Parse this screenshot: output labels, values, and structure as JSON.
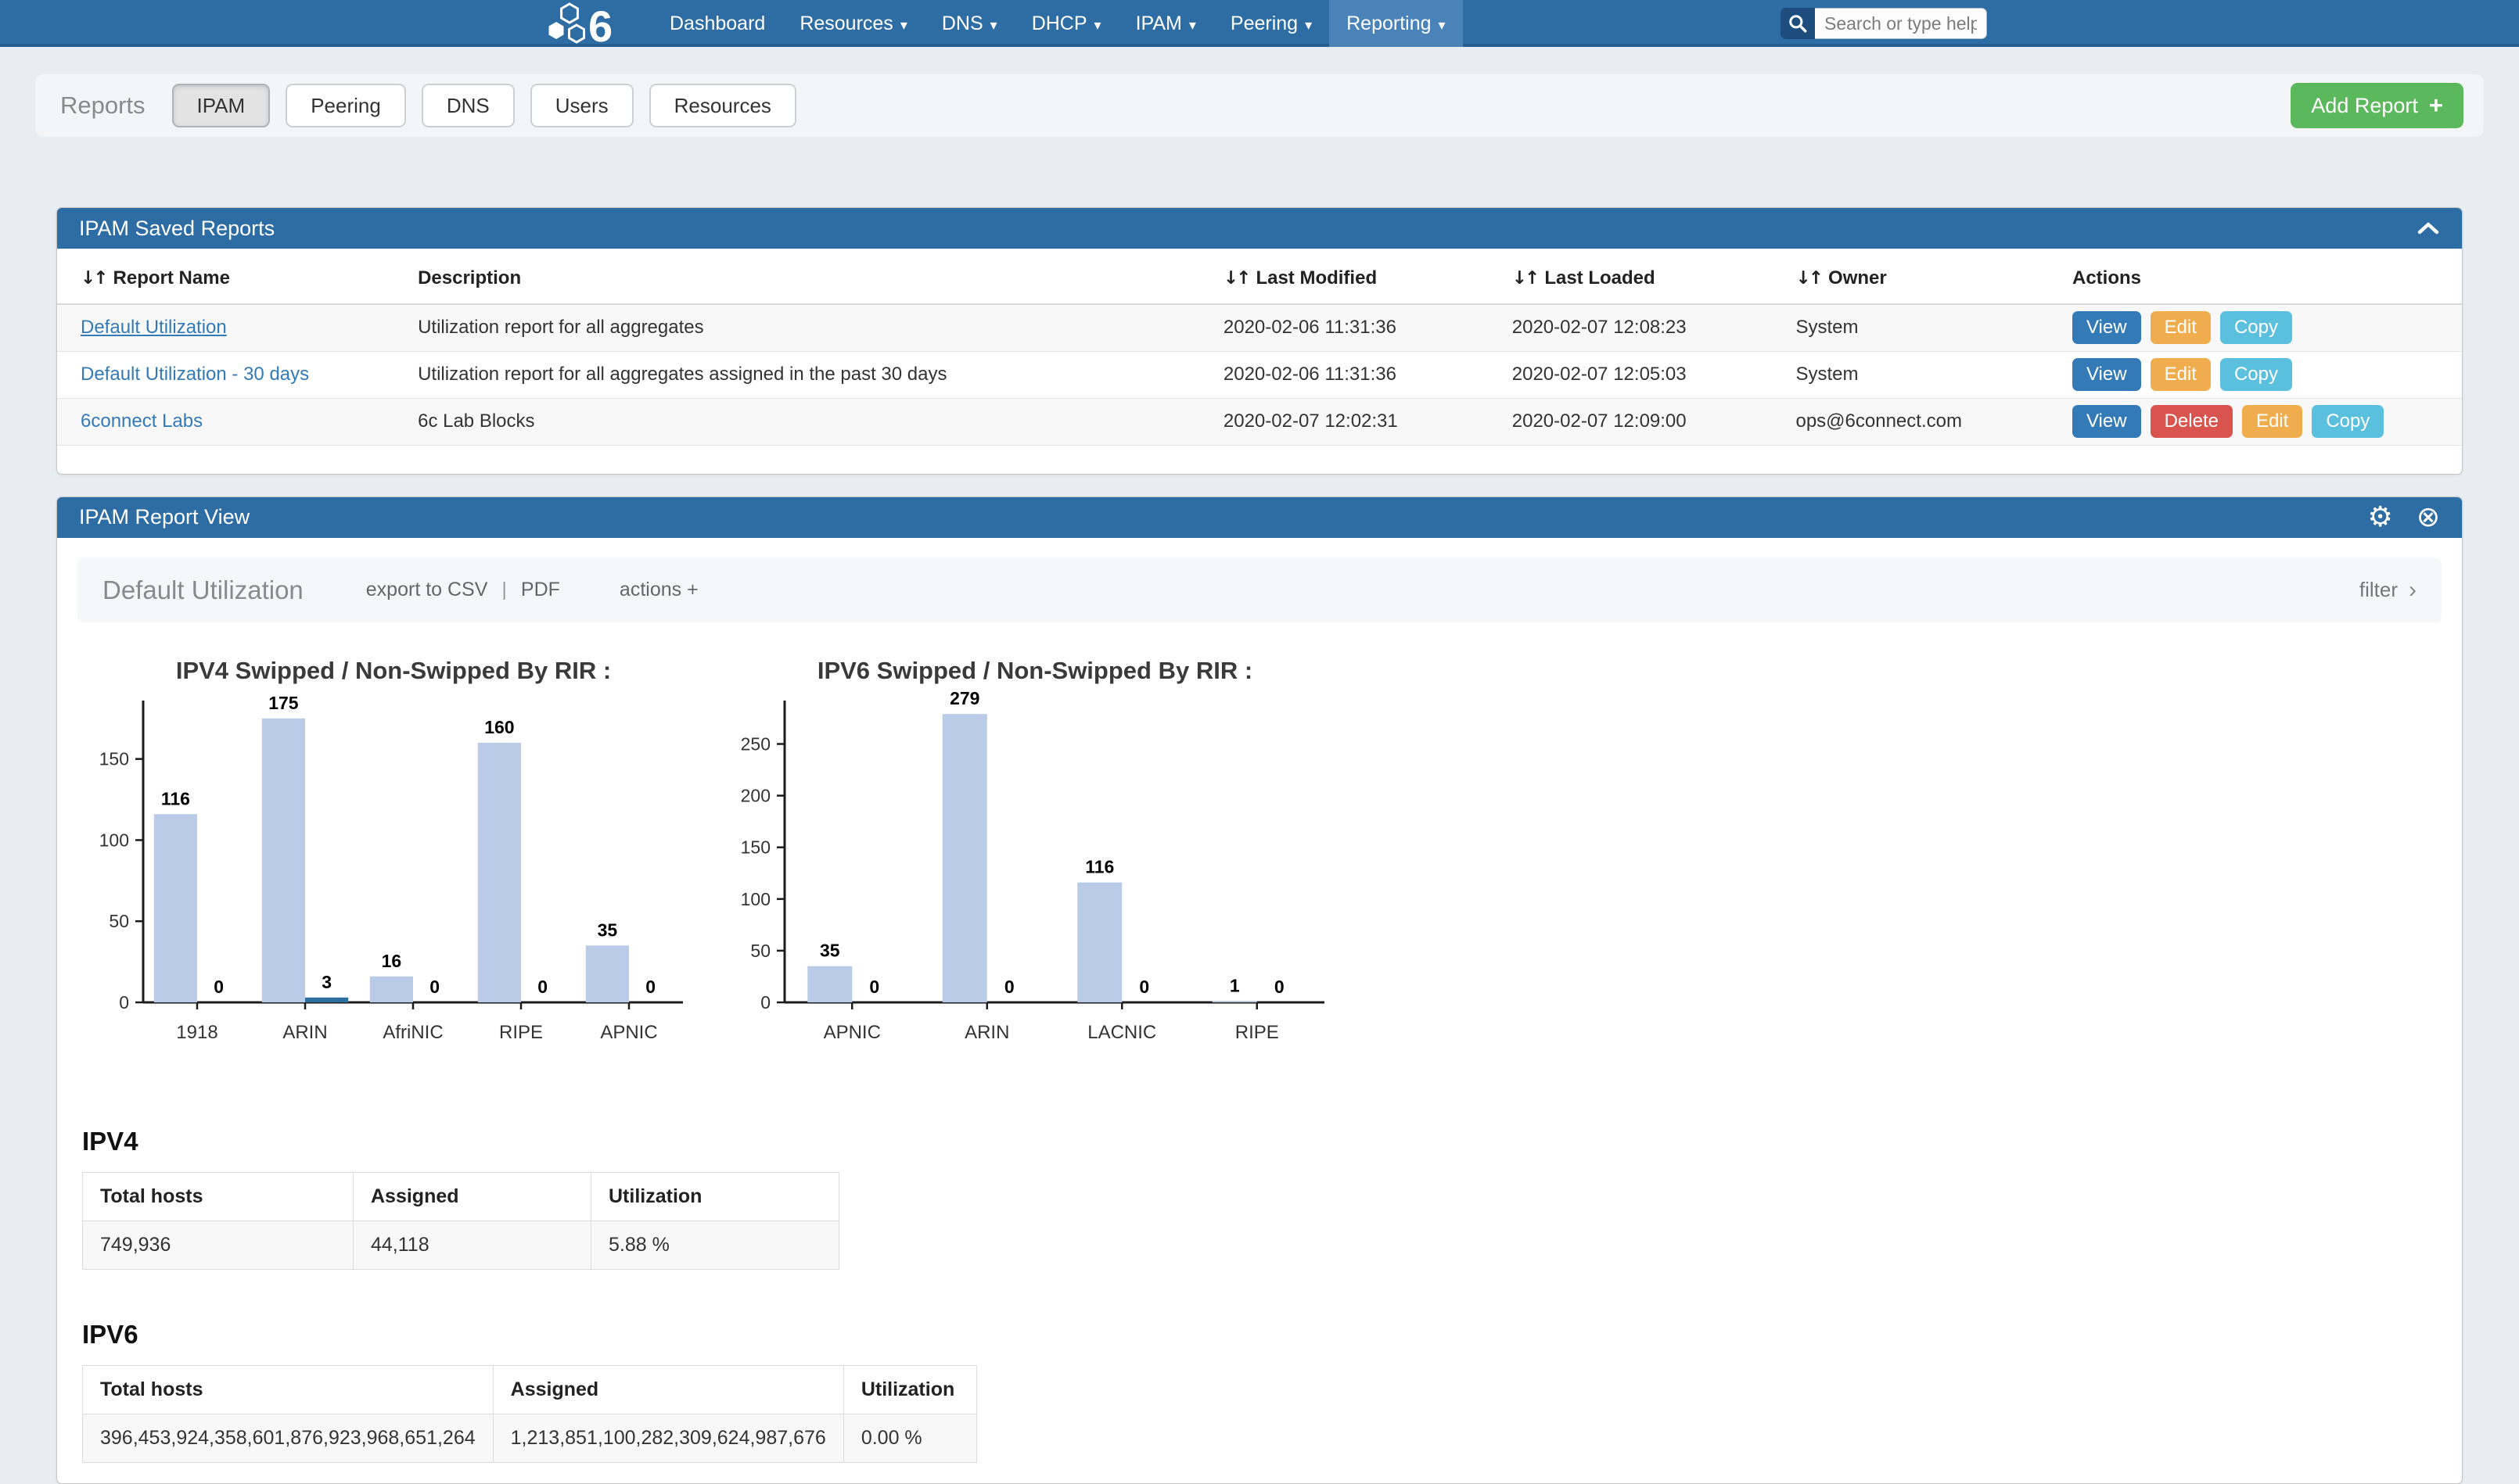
{
  "navbar": {
    "items": [
      {
        "label": "Dashboard",
        "dropdown": false,
        "active": false
      },
      {
        "label": "Resources",
        "dropdown": true,
        "active": false
      },
      {
        "label": "DNS",
        "dropdown": true,
        "active": false
      },
      {
        "label": "DHCP",
        "dropdown": true,
        "active": false
      },
      {
        "label": "IPAM",
        "dropdown": true,
        "active": false
      },
      {
        "label": "Peering",
        "dropdown": true,
        "active": false
      },
      {
        "label": "Reporting",
        "dropdown": true,
        "active": true
      }
    ],
    "search_placeholder": "Search or type help"
  },
  "toolbar": {
    "title": "Reports",
    "tabs": [
      {
        "label": "IPAM",
        "active": true
      },
      {
        "label": "Peering",
        "active": false
      },
      {
        "label": "DNS",
        "active": false
      },
      {
        "label": "Users",
        "active": false
      },
      {
        "label": "Resources",
        "active": false
      }
    ],
    "add_report_label": "Add Report"
  },
  "saved_reports": {
    "title": "IPAM Saved Reports",
    "columns": [
      {
        "label": "Report Name",
        "sortable": true
      },
      {
        "label": "Description",
        "sortable": false
      },
      {
        "label": "Last Modified",
        "sortable": true
      },
      {
        "label": "Last Loaded",
        "sortable": true
      },
      {
        "label": "Owner",
        "sortable": true
      },
      {
        "label": "Actions",
        "sortable": false
      }
    ],
    "rows": [
      {
        "name": "Default Utilization",
        "underline": true,
        "description": "Utilization report for all aggregates",
        "last_modified": "2020-02-06 11:31:36",
        "last_loaded": "2020-02-07 12:08:23",
        "owner": "System",
        "actions": [
          "View",
          "Edit",
          "Copy"
        ]
      },
      {
        "name": "Default Utilization - 30 days",
        "underline": false,
        "description": "Utilization report for all aggregates assigned in the past 30 days",
        "last_modified": "2020-02-06 11:31:36",
        "last_loaded": "2020-02-07 12:05:03",
        "owner": "System",
        "actions": [
          "View",
          "Edit",
          "Copy"
        ]
      },
      {
        "name": "6connect Labs",
        "underline": false,
        "description": "6c Lab Blocks",
        "last_modified": "2020-02-07 12:02:31",
        "last_loaded": "2020-02-07 12:09:00",
        "owner": "ops@6connect.com",
        "actions": [
          "View",
          "Delete",
          "Edit",
          "Copy"
        ]
      }
    ]
  },
  "report_view": {
    "title": "IPAM Report View",
    "report_title": "Default Utilization",
    "export_links": [
      "export to CSV",
      "PDF"
    ],
    "link_separator": "|",
    "actions_label": "actions +",
    "filter_label": "filter"
  },
  "chart_data": [
    {
      "type": "bar",
      "title": "IPV4 Swipped / Non-Swipped By RIR :",
      "categories": [
        "1918",
        "ARIN",
        "AfriNIC",
        "RIPE",
        "APNIC"
      ],
      "series": [
        {
          "name": "Swipped",
          "color": "#b9cbe7",
          "values": [
            116,
            175,
            16,
            160,
            35
          ]
        },
        {
          "name": "Non-Swipped",
          "color": "#2d6f9f",
          "values": [
            0,
            3,
            0,
            0,
            0
          ]
        }
      ],
      "ylim": [
        0,
        186
      ],
      "yticks": [
        0,
        50,
        100,
        150
      ],
      "grid": false,
      "legend": "none",
      "value_labels": true
    },
    {
      "type": "bar",
      "title": "IPV6 Swipped / Non-Swipped By RIR :",
      "categories": [
        "APNIC",
        "ARIN",
        "LACNIC",
        "RIPE"
      ],
      "series": [
        {
          "name": "Swipped",
          "color": "#b9cbe7",
          "values": [
            35,
            279,
            116,
            1
          ]
        },
        {
          "name": "Non-Swipped",
          "color": "#2d6f9f",
          "values": [
            0,
            0,
            0,
            0
          ]
        }
      ],
      "ylim": [
        0,
        292
      ],
      "yticks": [
        0,
        50,
        100,
        150,
        200,
        250
      ],
      "grid": false,
      "legend": "none",
      "value_labels": true
    }
  ],
  "ipv4_summary": {
    "heading": "IPV4",
    "columns": [
      "Total hosts",
      "Assigned",
      "Utilization"
    ],
    "rows": [
      [
        "749,936",
        "44,118",
        "5.88 %"
      ]
    ]
  },
  "ipv6_summary": {
    "heading": "IPV6",
    "columns": [
      "Total hosts",
      "Assigned",
      "Utilization"
    ],
    "rows": [
      [
        "396,453,924,358,601,876,923,968,651,264",
        "1,213,851,100,282,309,624,987,676",
        "0.00 %"
      ]
    ]
  },
  "icons": {
    "plus": "+",
    "caret_down": "▾",
    "sort": "↓↑",
    "gear": "⚙",
    "close": "⊗",
    "chevron_right": "›"
  },
  "theme": {
    "header_blue": "#2e6da4",
    "nav_active_blue": "#4983b8",
    "add_green": "#5cb85c",
    "link_blue": "#337ab7",
    "btn_view": "#337ab7",
    "btn_edit": "#f0ad4e",
    "btn_copy": "#5bc0de",
    "btn_delete": "#d9534f",
    "bar_light": "#b9cbe7",
    "bar_dark": "#2d6f9f",
    "page_bg": "#e8edf2"
  }
}
